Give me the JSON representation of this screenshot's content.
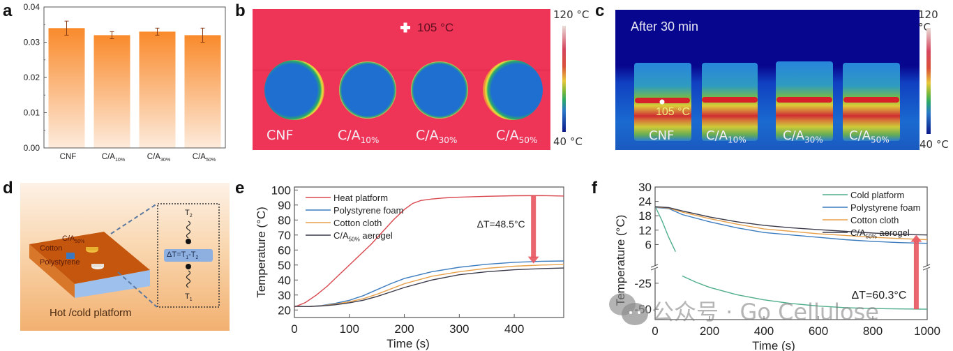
{
  "panels": {
    "a": {
      "label": "a"
    },
    "b": {
      "label": "b",
      "marker_text": "105 °C",
      "colorbar_max": "120 °C",
      "colorbar_min": "40 °C",
      "samples": [
        {
          "base": "CNF",
          "sub": ""
        },
        {
          "base": "C/A",
          "sub": "10%"
        },
        {
          "base": "C/A",
          "sub": "30%"
        },
        {
          "base": "C/A",
          "sub": "50%"
        }
      ]
    },
    "c": {
      "label": "c",
      "title": "After 30 min",
      "marker_text": "105 °C",
      "colorbar_max": "120 °C",
      "colorbar_min": "40 °C",
      "samples": [
        {
          "base": "CNF",
          "sub": ""
        },
        {
          "base": "C/A",
          "sub": "10%"
        },
        {
          "base": "C/A",
          "sub": "30%"
        },
        {
          "base": "C/A",
          "sub": "50%"
        }
      ]
    },
    "d": {
      "label": "d",
      "platform_label": "Hot /cold platform",
      "cotton": "Cotton",
      "polystyrene": "Polystyrene",
      "ca_base": "C/A",
      "ca_sub": "50%",
      "t2": "T",
      "t2_sub": "2",
      "t1": "T",
      "t1_sub": "1",
      "delta_parts": [
        "ΔT=T",
        "1",
        "-T",
        "2"
      ]
    },
    "e": {
      "label": "e"
    },
    "f": {
      "label": "f"
    }
  },
  "colors": {
    "bar_top": "#f98a2b",
    "bar_bottom": "#fdebdc",
    "heat": "#d9474f",
    "cold": "#4fae8a",
    "polystyrene": "#3b7bbf",
    "cotton": "#e8a14b",
    "aerogel": "#3a3a4a",
    "arrow": "#e8555f",
    "thermal_bg_b": "#ee3558",
    "thermal_bg_c": "#0a10a0"
  },
  "watermark": {
    "text": "公众号 · Go Cellulose",
    "icon": "wechat-icon"
  },
  "chart_data": [
    {
      "id": "a",
      "type": "bar",
      "categories": [
        "CNF",
        "C/A10%",
        "C/A30%",
        "C/A50%"
      ],
      "category_labels": [
        {
          "base": "CNF",
          "sub": ""
        },
        {
          "base": "C/A",
          "sub": "10%"
        },
        {
          "base": "C/A",
          "sub": "30%"
        },
        {
          "base": "C/A",
          "sub": "50%"
        }
      ],
      "values": [
        0.034,
        0.032,
        0.033,
        0.032
      ],
      "errors": [
        0.002,
        0.001,
        0.001,
        0.002
      ],
      "ylim": [
        0,
        0.04
      ],
      "yticks": [
        "0.00",
        "0.01",
        "0.02",
        "0.03",
        "0.04"
      ],
      "ytick_values": [
        0,
        0.01,
        0.02,
        0.03,
        0.04
      ],
      "xlabel": "",
      "ylabel": "",
      "title": ""
    },
    {
      "id": "e",
      "type": "line",
      "xlabel": "Time (s)",
      "ylabel": "Temperature (°C)",
      "xlim": [
        0,
        490
      ],
      "ylim": [
        15,
        102
      ],
      "xticks": [
        0,
        100,
        200,
        300,
        400
      ],
      "yticks": [
        20,
        30,
        40,
        50,
        60,
        70,
        80,
        90,
        100
      ],
      "legend_position": "top-left",
      "annotation": "ΔT=48.5°C",
      "arrow": {
        "x": 435,
        "from": 96,
        "to": 51
      },
      "series": [
        {
          "name": "Heat platform",
          "legend_base": "Heat platform",
          "legend_sub": "",
          "color_key": "heat",
          "x": [
            0,
            20,
            40,
            60,
            80,
            100,
            120,
            140,
            160,
            180,
            200,
            215,
            230,
            250,
            275,
            300,
            350,
            400,
            450,
            490
          ],
          "y": [
            22,
            25,
            30,
            36,
            43,
            50,
            57,
            64,
            72,
            80,
            87,
            91,
            93,
            94,
            94.8,
            95.2,
            95.8,
            96.2,
            96.3,
            96
          ]
        },
        {
          "name": "Polystyrene foam",
          "legend_base": "Polystyrene foam",
          "legend_sub": "",
          "color_key": "polystyrene",
          "x": [
            0,
            25,
            50,
            75,
            100,
            125,
            150,
            175,
            200,
            250,
            300,
            350,
            400,
            450,
            490
          ],
          "y": [
            22.5,
            22.3,
            23,
            24.5,
            26.5,
            29.5,
            33.5,
            37.5,
            41,
            45.5,
            48.5,
            50.5,
            51.8,
            52.5,
            52.7
          ]
        },
        {
          "name": "Cotton cloth",
          "legend_base": "Cotton cloth",
          "legend_sub": "",
          "color_key": "cotton",
          "x": [
            0,
            25,
            50,
            75,
            100,
            125,
            150,
            175,
            200,
            250,
            300,
            350,
            400,
            450,
            490
          ],
          "y": [
            22.5,
            22.3,
            22.8,
            24,
            25.5,
            27.5,
            30.5,
            34,
            37.5,
            42.5,
            45.5,
            47.8,
            49.2,
            50,
            50.3
          ]
        },
        {
          "name": "C/A50% aerogel",
          "legend_base": "C/A",
          "legend_sub": "50%",
          "legend_suffix": " aerogel",
          "color_key": "aerogel",
          "x": [
            0,
            25,
            50,
            75,
            100,
            125,
            150,
            175,
            200,
            250,
            300,
            350,
            400,
            450,
            490
          ],
          "y": [
            22.5,
            22.3,
            22.7,
            23.5,
            24.8,
            26.5,
            29,
            32,
            35,
            40,
            43.5,
            45.5,
            46.8,
            47.6,
            48
          ]
        }
      ]
    },
    {
      "id": "f",
      "type": "line",
      "xlabel": "Time (s)",
      "ylabel": "Temperature (°C)",
      "xlim": [
        0,
        1000
      ],
      "ylim_upper": [
        0,
        30
      ],
      "ylim_lower": [
        -60,
        -15
      ],
      "axis_break": true,
      "xticks": [
        0,
        200,
        400,
        600,
        800,
        1000
      ],
      "yticks": [
        30,
        24,
        18,
        12,
        6,
        -25,
        -50
      ],
      "legend_position": "top-right",
      "annotation": "ΔT=60.3°C",
      "arrow": {
        "x": 960,
        "from": -50,
        "to": 10
      },
      "series": [
        {
          "name": "Cold platform",
          "legend_base": "Cold platform",
          "legend_sub": "",
          "color_key": "cold",
          "x": [
            0,
            25,
            50,
            75,
            100,
            150,
            200,
            300,
            400,
            500,
            600,
            700,
            800,
            900,
            1000
          ],
          "y": [
            22,
            16,
            9,
            3,
            -18,
            -24,
            -29,
            -36,
            -41,
            -44.5,
            -47,
            -48.5,
            -49.3,
            -49.7,
            -50
          ]
        },
        {
          "name": "Polystyrene foam",
          "legend_base": "Polystyrene foam",
          "legend_sub": "",
          "color_key": "polystyrene",
          "x": [
            0,
            50,
            100,
            200,
            300,
            400,
            500,
            600,
            700,
            800,
            900,
            1000
          ],
          "y": [
            21.5,
            21,
            18.5,
            15.5,
            13,
            11,
            10,
            9,
            8,
            7.3,
            6.8,
            6.5
          ]
        },
        {
          "name": "Cotton cloth",
          "legend_base": "Cotton cloth",
          "legend_sub": "",
          "color_key": "cotton",
          "x": [
            0,
            50,
            100,
            200,
            300,
            400,
            500,
            600,
            700,
            800,
            900,
            1000
          ],
          "y": [
            21.7,
            21.2,
            19.5,
            16.8,
            14.5,
            12.5,
            11.5,
            10.5,
            9.8,
            9,
            8.5,
            8
          ]
        },
        {
          "name": "C/A50% aerogel",
          "legend_base": "C/A",
          "legend_sub": "50%",
          "legend_suffix": " aerogel",
          "color_key": "aerogel",
          "x": [
            0,
            50,
            100,
            200,
            300,
            400,
            500,
            600,
            700,
            800,
            900,
            1000
          ],
          "y": [
            21.8,
            21.4,
            20,
            17.5,
            15.5,
            14,
            13,
            12.2,
            11.5,
            10.8,
            10.2,
            10
          ]
        }
      ]
    }
  ]
}
